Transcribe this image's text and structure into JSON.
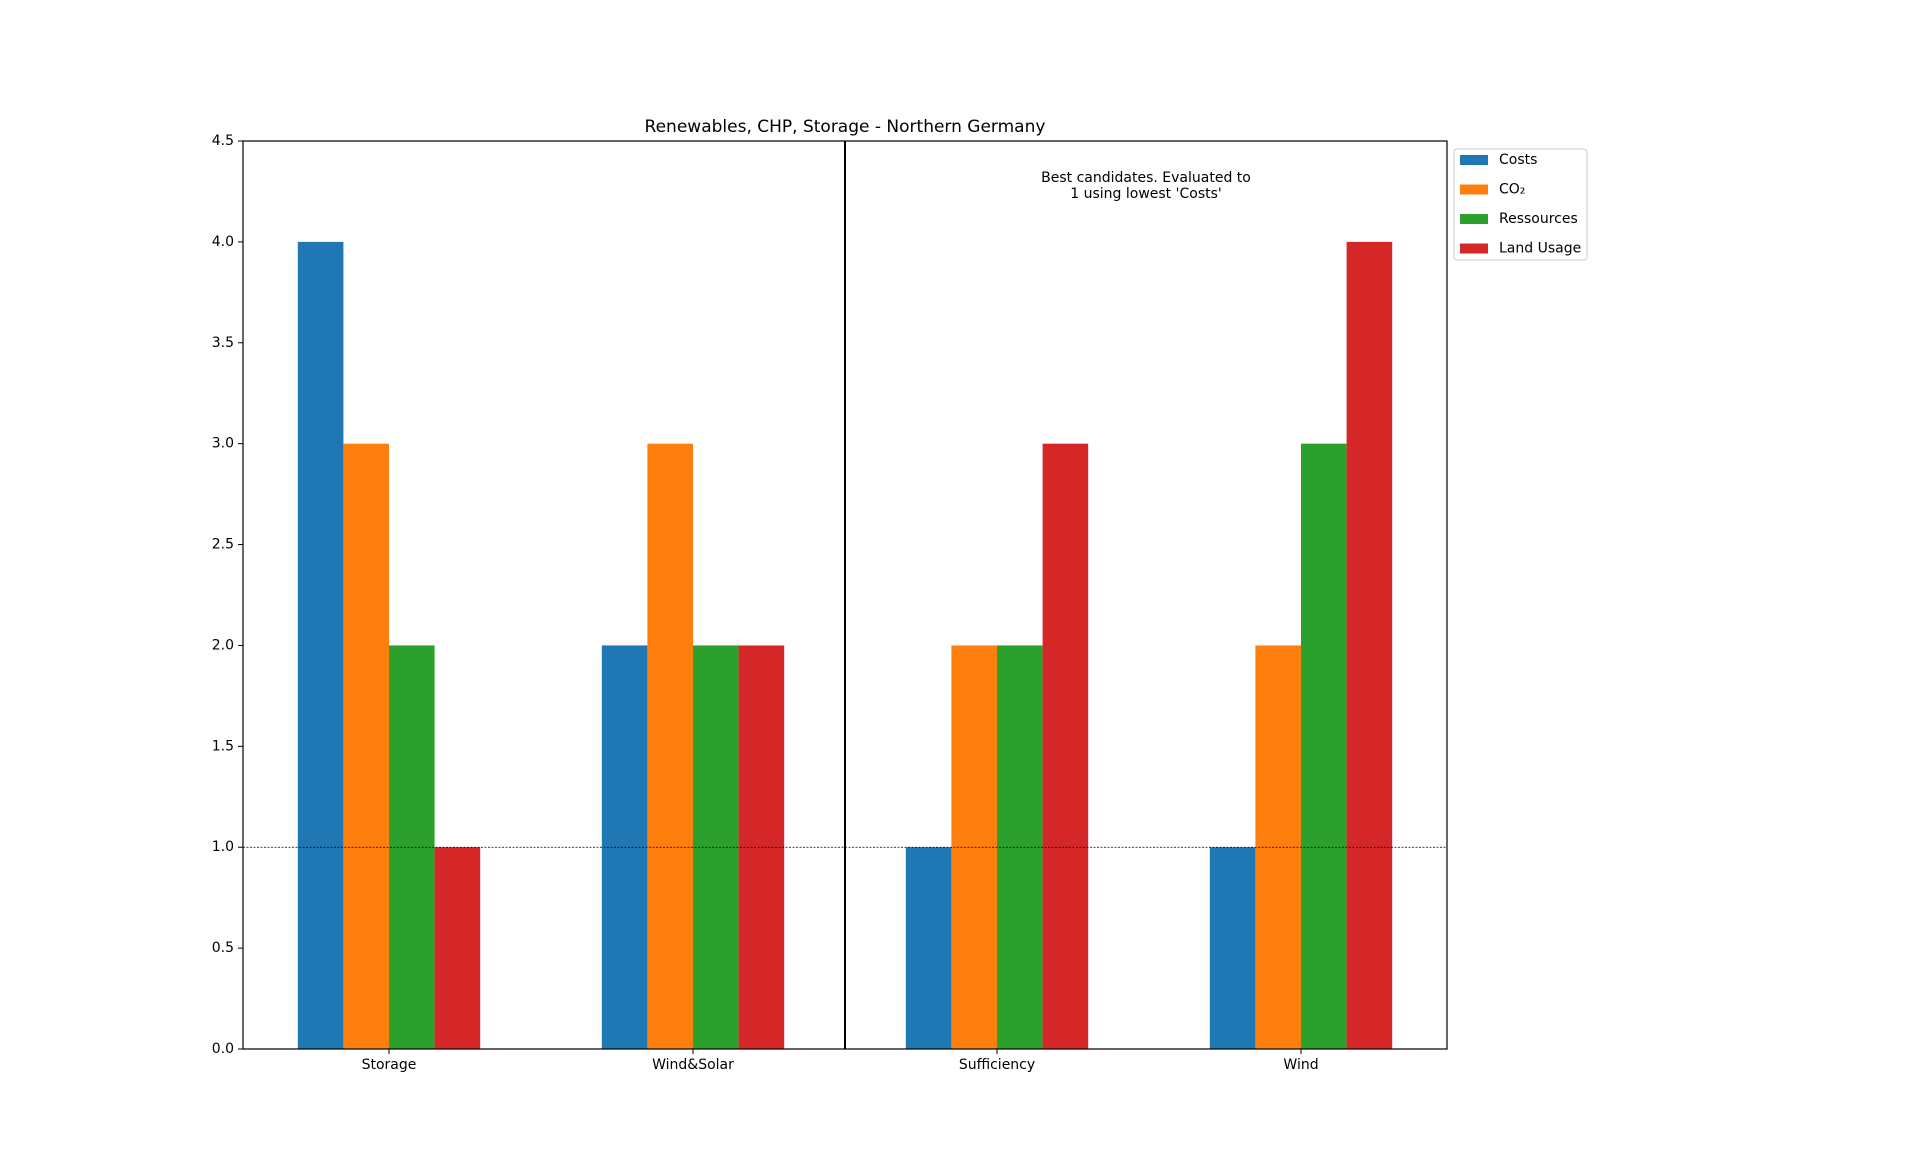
{
  "chart_data": {
    "type": "bar",
    "title": "Renewables, CHP, Storage - Northern Germany",
    "annotation": [
      "Best candidates. Evaluated to",
      "1 using lowest 'Costs'"
    ],
    "categories": [
      "Storage",
      "Wind&Solar",
      "Sufficiency",
      "Wind"
    ],
    "series": [
      {
        "name": "Costs",
        "color": "#1f77b4",
        "values": [
          4,
          2,
          1,
          1
        ]
      },
      {
        "name": "CO₂",
        "color": "#ff7f0e",
        "values": [
          3,
          3,
          2,
          2
        ]
      },
      {
        "name": "Ressources",
        "color": "#2ca02c",
        "values": [
          2,
          2,
          2,
          3
        ]
      },
      {
        "name": "Land Usage",
        "color": "#d62728",
        "values": [
          1,
          2,
          3,
          4
        ]
      }
    ],
    "ylim": [
      0,
      4.5
    ],
    "yticks": [
      {
        "value": 0,
        "label": "0.0"
      },
      {
        "value": 0.5,
        "label": "0.5"
      },
      {
        "value": 1,
        "label": "1.0"
      },
      {
        "value": 1.5,
        "label": "1.5"
      },
      {
        "value": 2,
        "label": "2.0"
      },
      {
        "value": 2.5,
        "label": "2.5"
      },
      {
        "value": 3,
        "label": "3.0"
      },
      {
        "value": 3.5,
        "label": "3.5"
      },
      {
        "value": 4,
        "label": "4.0"
      },
      {
        "value": 4.5,
        "label": "4.5"
      }
    ],
    "reference_line": 1,
    "legend": "outside-upper-right"
  }
}
